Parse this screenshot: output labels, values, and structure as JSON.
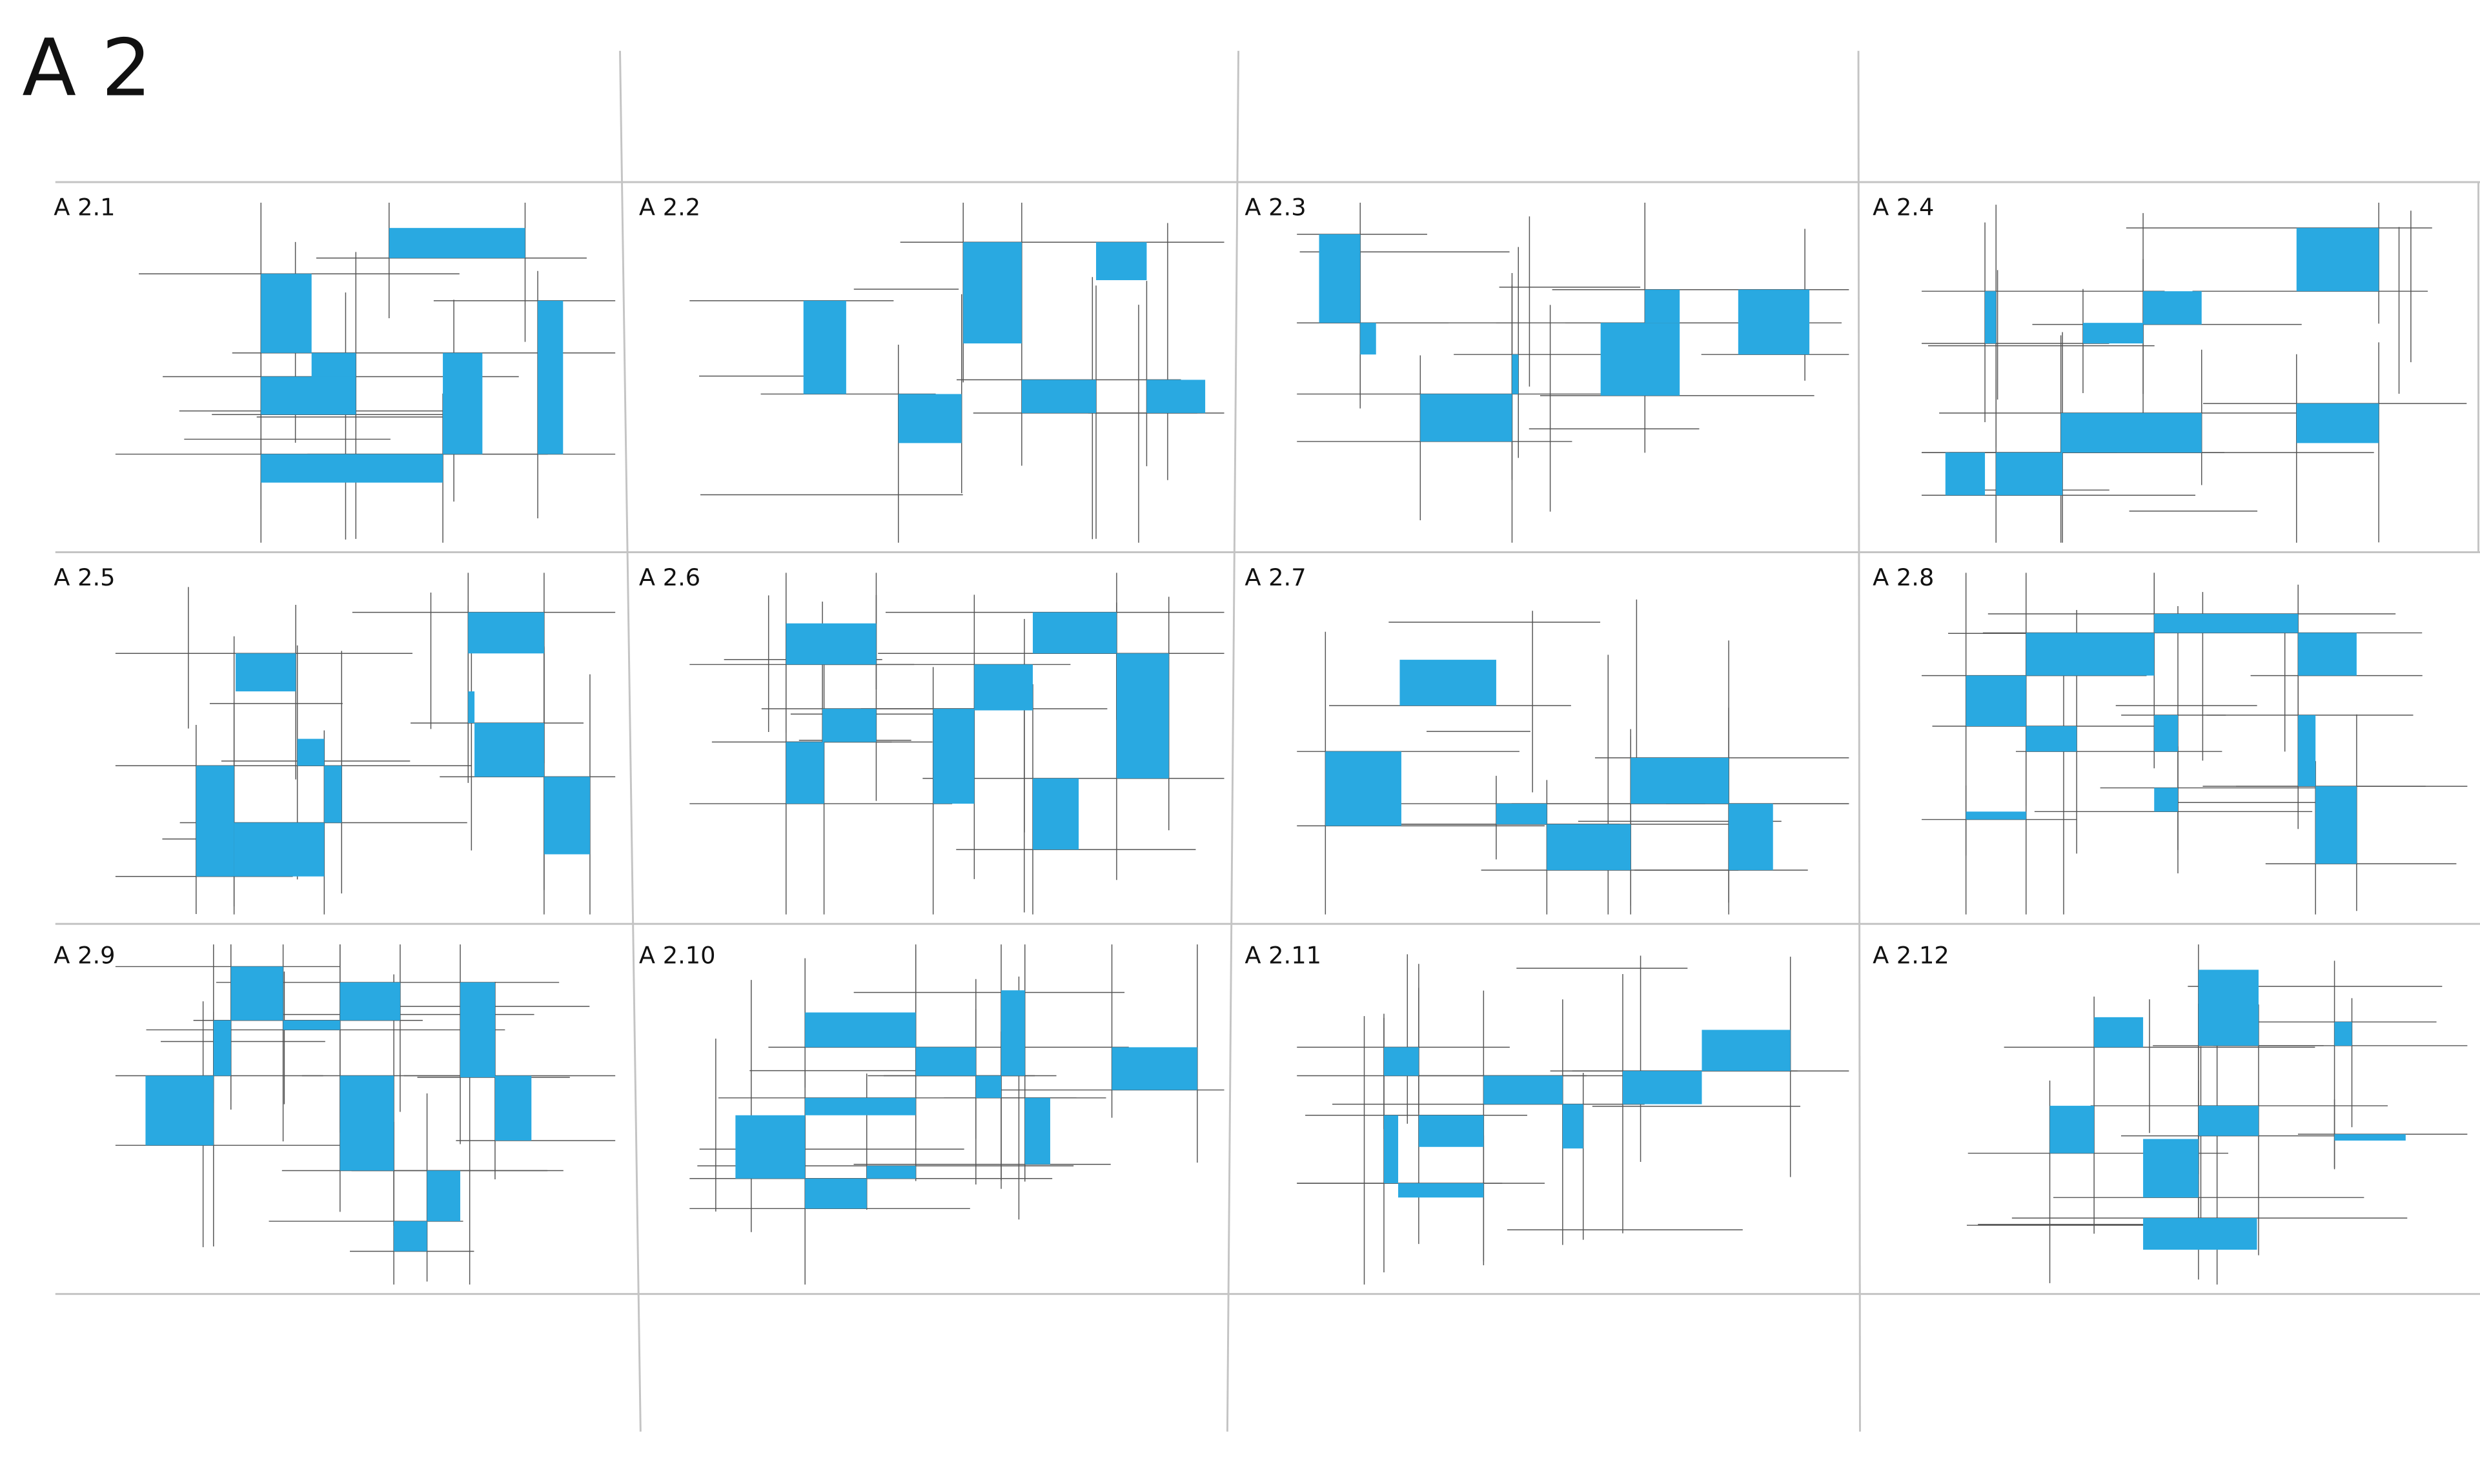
{
  "title": "A 2",
  "panels": [
    {
      "label": "A 2.1"
    },
    {
      "label": "A 2.2"
    },
    {
      "label": "A 2.3"
    },
    {
      "label": "A 2.4"
    },
    {
      "label": "A 2.5"
    },
    {
      "label": "A 2.6"
    },
    {
      "label": "A 2.7"
    },
    {
      "label": "A 2.8"
    },
    {
      "label": "A 2.9"
    },
    {
      "label": "A 2.10"
    },
    {
      "label": "A 2.11"
    },
    {
      "label": "A 2.12"
    }
  ]
}
